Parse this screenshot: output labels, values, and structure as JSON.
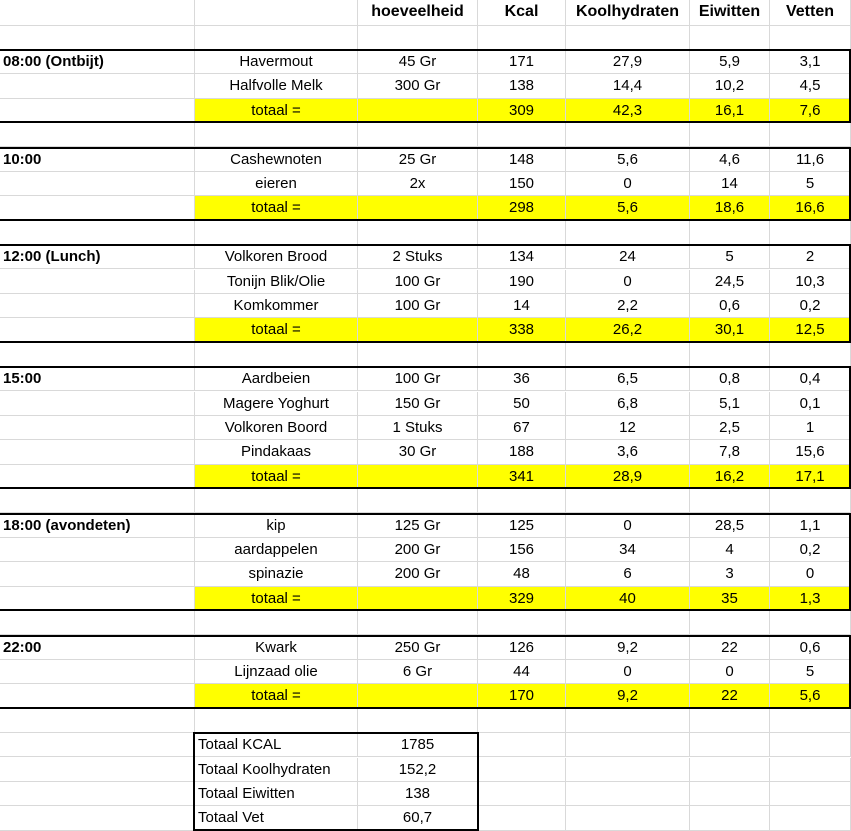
{
  "headers": [
    "",
    "",
    "hoeveelheid",
    "Kcal",
    "Koolhydraten",
    "Eiwitten",
    "Vetten"
  ],
  "total_label": "totaal =",
  "highlight_color": "#ffff00",
  "meals": [
    {
      "time": "08:00 (Ontbijt)",
      "items": [
        [
          "Havermout",
          "45 Gr",
          "171",
          "27,9",
          "5,9",
          "3,1"
        ],
        [
          "Halfvolle Melk",
          "300 Gr",
          "138",
          "14,4",
          "10,2",
          "4,5"
        ]
      ],
      "total": [
        "309",
        "42,3",
        "16,1",
        "7,6"
      ]
    },
    {
      "time": "10:00",
      "items": [
        [
          "Cashewnoten",
          "25 Gr",
          "148",
          "5,6",
          "4,6",
          "11,6"
        ],
        [
          "eieren",
          "2x",
          "150",
          "0",
          "14",
          "5"
        ]
      ],
      "total": [
        "298",
        "5,6",
        "18,6",
        "16,6"
      ]
    },
    {
      "time": "12:00 (Lunch)",
      "items": [
        [
          "Volkoren Brood",
          "2 Stuks",
          "134",
          "24",
          "5",
          "2"
        ],
        [
          "Tonijn Blik/Olie",
          "100 Gr",
          "190",
          "0",
          "24,5",
          "10,3"
        ],
        [
          "Komkommer",
          "100 Gr",
          "14",
          "2,2",
          "0,6",
          "0,2"
        ]
      ],
      "total": [
        "338",
        "26,2",
        "30,1",
        "12,5"
      ]
    },
    {
      "time": "15:00",
      "items": [
        [
          "Aardbeien",
          "100 Gr",
          "36",
          "6,5",
          "0,8",
          "0,4"
        ],
        [
          "Magere Yoghurt",
          "150 Gr",
          "50",
          "6,8",
          "5,1",
          "0,1"
        ],
        [
          "Volkoren Boord",
          "1 Stuks",
          "67",
          "12",
          "2,5",
          "1"
        ],
        [
          "Pindakaas",
          "30 Gr",
          "188",
          "3,6",
          "7,8",
          "15,6"
        ]
      ],
      "total": [
        "341",
        "28,9",
        "16,2",
        "17,1"
      ]
    },
    {
      "time": "18:00 (avondeten)",
      "items": [
        [
          "kip",
          "125 Gr",
          "125",
          "0",
          "28,5",
          "1,1"
        ],
        [
          "aardappelen",
          "200 Gr",
          "156",
          "34",
          "4",
          "0,2"
        ],
        [
          "spinazie",
          "200 Gr",
          "48",
          "6",
          "3",
          "0"
        ]
      ],
      "total": [
        "329",
        "40",
        "35",
        "1,3"
      ]
    },
    {
      "time": "22:00",
      "items": [
        [
          "Kwark",
          "250 Gr",
          "126",
          "9,2",
          "22",
          "0,6"
        ],
        [
          "Lijnzaad olie",
          "6 Gr",
          "44",
          "0",
          "0",
          "5"
        ]
      ],
      "total": [
        "170",
        "9,2",
        "22",
        "5,6"
      ]
    }
  ],
  "summary": [
    [
      "Totaal KCAL",
      "1785"
    ],
    [
      "Totaal Koolhydraten",
      "152,2"
    ],
    [
      "Totaal Eiwitten",
      "138"
    ],
    [
      "Totaal Vet",
      "60,7"
    ]
  ]
}
